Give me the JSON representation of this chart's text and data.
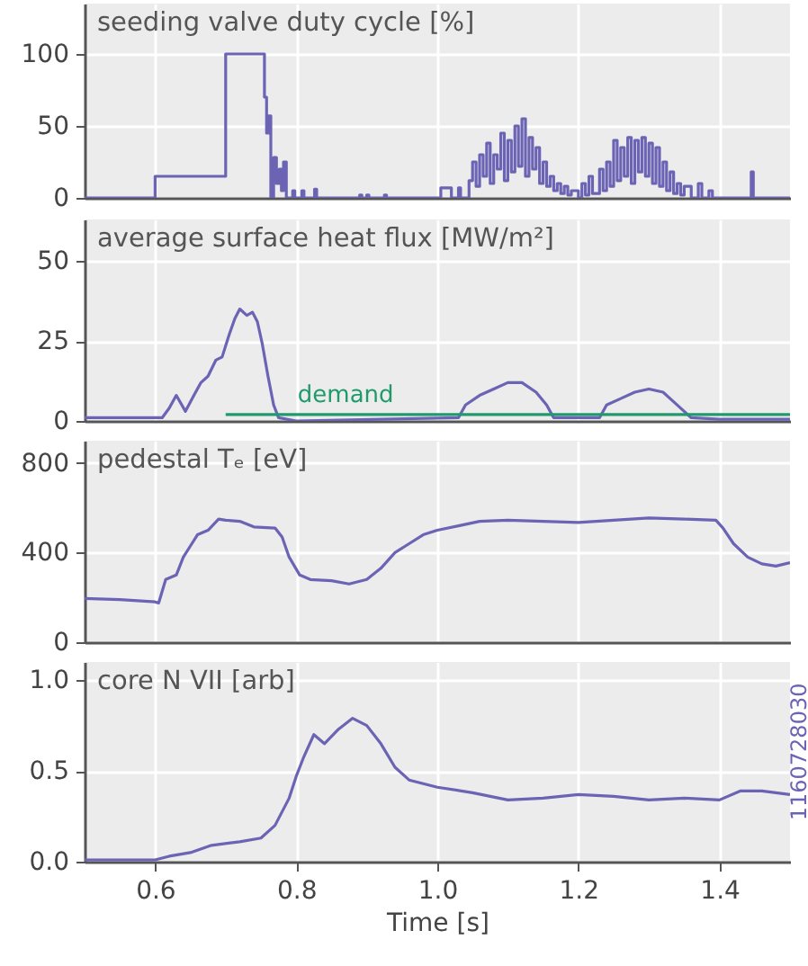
{
  "chart_data": [
    {
      "type": "step",
      "title": "seeding valve duty cycle [%]",
      "xlim": [
        0.5,
        1.5
      ],
      "xticks": [
        0.6,
        0.8,
        1,
        1.2,
        1.4
      ],
      "ylim": [
        0,
        135
      ],
      "yticks": [
        0,
        50,
        100
      ],
      "grid": true,
      "tick_labels": "y",
      "series": [
        {
          "color": "#6b64b4",
          "x": [
            0.5,
            0.6,
            0.7,
            0.755,
            0.758,
            0.761,
            0.764,
            0.768,
            0.772,
            0.776,
            0.779,
            0.782,
            0.786,
            0.795,
            0.798,
            0.808,
            0.811,
            0.826,
            0.829,
            0.89,
            0.893,
            0.9,
            0.903,
            0.925,
            0.928,
            1.005,
            1.02,
            1.03,
            1.033,
            1.045,
            1.05,
            1.055,
            1.06,
            1.065,
            1.07,
            1.075,
            1.08,
            1.085,
            1.09,
            1.095,
            1.1,
            1.105,
            1.11,
            1.115,
            1.12,
            1.125,
            1.13,
            1.135,
            1.14,
            1.145,
            1.15,
            1.155,
            1.16,
            1.165,
            1.17,
            1.175,
            1.18,
            1.185,
            1.19,
            1.2,
            1.205,
            1.21,
            1.215,
            1.22,
            1.23,
            1.235,
            1.24,
            1.245,
            1.25,
            1.255,
            1.26,
            1.265,
            1.27,
            1.275,
            1.28,
            1.285,
            1.29,
            1.295,
            1.3,
            1.305,
            1.31,
            1.315,
            1.32,
            1.325,
            1.33,
            1.335,
            1.34,
            1.345,
            1.35,
            1.36,
            1.37,
            1.375,
            1.385,
            1.39,
            1.445,
            1.448,
            1.5
          ],
          "values": [
            0,
            15,
            100,
            70,
            45,
            57,
            0,
            28,
            10,
            20,
            5,
            25,
            0,
            5,
            0,
            5,
            0,
            6,
            0,
            2,
            0,
            2,
            0,
            2,
            0,
            7,
            0,
            7,
            0,
            12,
            25,
            8,
            30,
            15,
            38,
            10,
            30,
            20,
            45,
            12,
            40,
            18,
            50,
            22,
            55,
            15,
            42,
            20,
            35,
            10,
            25,
            8,
            15,
            5,
            10,
            3,
            8,
            2,
            5,
            0,
            10,
            2,
            15,
            3,
            20,
            5,
            25,
            8,
            40,
            12,
            35,
            15,
            42,
            10,
            40,
            18,
            42,
            15,
            38,
            10,
            35,
            8,
            25,
            5,
            18,
            3,
            10,
            2,
            8,
            0,
            10,
            0,
            5,
            0,
            18,
            0,
            0
          ]
        }
      ]
    },
    {
      "type": "line",
      "title": "average surface heat flux [MW/m²]",
      "xlim": [
        0.5,
        1.5
      ],
      "xticks": [
        0.6,
        0.8,
        1,
        1.2,
        1.4
      ],
      "ylim": [
        0,
        63
      ],
      "yticks": [
        0,
        25,
        50
      ],
      "grid": true,
      "tick_labels": "y",
      "series": [
        {
          "color": "#6b64b4",
          "x": [
            0.5,
            0.6,
            0.61,
            0.62,
            0.63,
            0.643,
            0.655,
            0.665,
            0.675,
            0.686,
            0.695,
            0.705,
            0.713,
            0.72,
            0.73,
            0.738,
            0.745,
            0.752,
            0.76,
            0.768,
            0.775,
            0.8,
            1.03,
            1.04,
            1.06,
            1.08,
            1.1,
            1.12,
            1.14,
            1.155,
            1.165,
            1.23,
            1.24,
            1.26,
            1.28,
            1.3,
            1.32,
            1.335,
            1.35,
            1.36,
            1.4,
            1.5
          ],
          "values": [
            1,
            1,
            1,
            4,
            8,
            3,
            8,
            12,
            14,
            19,
            20,
            27,
            32,
            35,
            33,
            34,
            31,
            24,
            14,
            5,
            1,
            0,
            1,
            5,
            8,
            10,
            12,
            12,
            9,
            5,
            1,
            1,
            5,
            7,
            9,
            10,
            9,
            6,
            3,
            1,
            0.5,
            0.5
          ]
        },
        {
          "name": "demand",
          "color": "#1f9a6c",
          "x": [
            0.7,
            1.5
          ],
          "values": [
            2,
            2
          ]
        }
      ]
    },
    {
      "type": "line",
      "title": "pedestal Tₑ [eV]",
      "xlim": [
        0.5,
        1.5
      ],
      "xticks": [
        0.6,
        0.8,
        1,
        1.2,
        1.4
      ],
      "ylim": [
        0,
        900
      ],
      "yticks": [
        0,
        400,
        800
      ],
      "grid": true,
      "tick_labels": "y",
      "series": [
        {
          "color": "#6b64b4",
          "x": [
            0.5,
            0.55,
            0.6,
            0.605,
            0.615,
            0.63,
            0.64,
            0.65,
            0.66,
            0.675,
            0.69,
            0.7,
            0.72,
            0.74,
            0.77,
            0.78,
            0.79,
            0.805,
            0.82,
            0.85,
            0.875,
            0.9,
            0.92,
            0.94,
            0.96,
            0.98,
            1.0,
            1.03,
            1.06,
            1.1,
            1.15,
            1.2,
            1.25,
            1.3,
            1.35,
            1.395,
            1.405,
            1.42,
            1.44,
            1.46,
            1.48,
            1.5
          ],
          "values": [
            195,
            190,
            180,
            175,
            280,
            300,
            380,
            430,
            480,
            500,
            550,
            545,
            540,
            515,
            510,
            470,
            380,
            300,
            280,
            275,
            260,
            280,
            330,
            400,
            440,
            480,
            500,
            520,
            540,
            545,
            540,
            535,
            545,
            555,
            550,
            545,
            510,
            440,
            380,
            350,
            340,
            355
          ]
        }
      ]
    },
    {
      "type": "line",
      "title": "core N VII [arb]",
      "xlabel": "Time [s]",
      "annotations": [
        "1160728030"
      ],
      "xlim": [
        0.5,
        1.5
      ],
      "xticks": [
        0.6,
        0.8,
        {
          "value": 1,
          "label": "1.0"
        },
        1.2,
        1.4
      ],
      "ylim": [
        0,
        1.1
      ],
      "yticks": [
        {
          "value": 0,
          "label": "0.0"
        },
        0.5,
        {
          "value": 1,
          "label": "1.0"
        }
      ],
      "grid": true,
      "series": [
        {
          "color": "#6b64b4",
          "x": [
            0.5,
            0.6,
            0.62,
            0.65,
            0.68,
            0.72,
            0.75,
            0.77,
            0.79,
            0.8,
            0.81,
            0.825,
            0.84,
            0.86,
            0.88,
            0.9,
            0.92,
            0.94,
            0.96,
            1.0,
            1.05,
            1.1,
            1.15,
            1.2,
            1.25,
            1.3,
            1.35,
            1.4,
            1.43,
            1.46,
            1.5
          ],
          "values": [
            0.01,
            0.01,
            0.03,
            0.05,
            0.09,
            0.11,
            0.13,
            0.2,
            0.35,
            0.47,
            0.57,
            0.7,
            0.65,
            0.73,
            0.79,
            0.75,
            0.65,
            0.52,
            0.45,
            0.41,
            0.38,
            0.34,
            0.35,
            0.37,
            0.36,
            0.34,
            0.35,
            0.34,
            0.39,
            0.39,
            0.37
          ]
        }
      ]
    }
  ]
}
